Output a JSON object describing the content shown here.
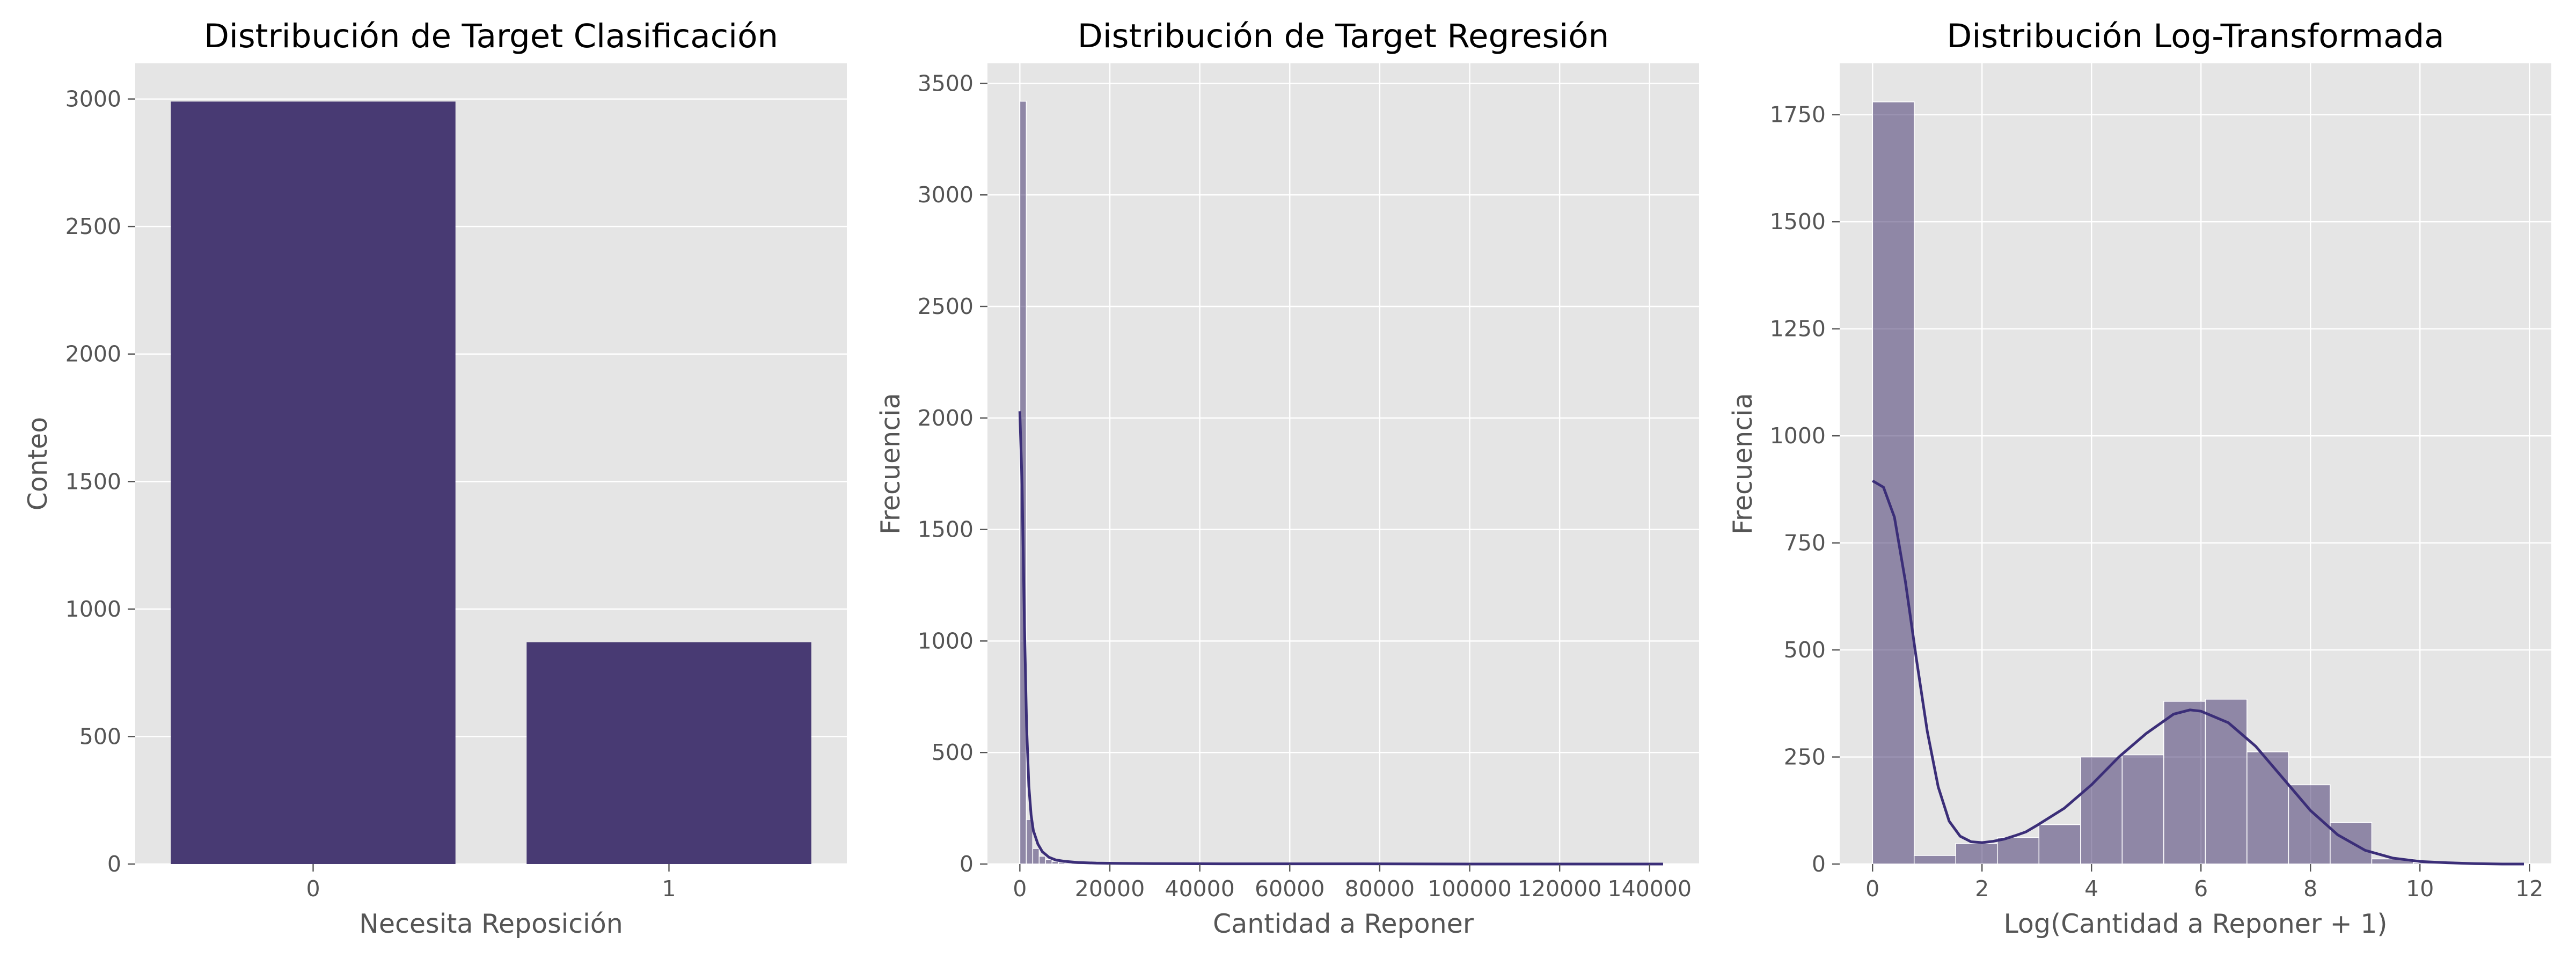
{
  "colors": {
    "bar": "#483a73",
    "hist_fill": "#483a73",
    "hist_opacity": 0.55,
    "kde_line": "#3b2e78",
    "plot_bg": "#e5e5e5",
    "grid": "#ffffff",
    "tick_text": "#555555",
    "title_text": "#000000"
  },
  "style": "ggplot",
  "chart_data": [
    {
      "type": "bar",
      "title": "Distribución de Target Clasificación",
      "xlabel": "Necesita Reposición",
      "ylabel": "Conteo",
      "categories": [
        "0",
        "1"
      ],
      "values": [
        2990,
        870
      ],
      "ylim": [
        0,
        3140
      ],
      "yticks": [
        0,
        500,
        1000,
        1500,
        2000,
        2500,
        3000
      ],
      "ytick_labels": [
        "0",
        "500",
        "1000",
        "1500",
        "2000",
        "2500",
        "3000"
      ],
      "grid": true
    },
    {
      "type": "histogram",
      "title": "Distribución de Target Regresión",
      "xlabel": "Cantidad a Reponer",
      "ylabel": "Frecuencia",
      "xlim": [
        -7200,
        151000
      ],
      "ylim": [
        0,
        3590
      ],
      "xticks": [
        0,
        20000,
        40000,
        60000,
        80000,
        100000,
        120000,
        140000
      ],
      "xtick_labels": [
        "0",
        "20000",
        "40000",
        "60000",
        "80000",
        "100000",
        "120000",
        "140000"
      ],
      "yticks": [
        0,
        500,
        1000,
        1500,
        2000,
        2500,
        3000,
        3500
      ],
      "ytick_labels": [
        "0",
        "500",
        "1000",
        "1500",
        "2000",
        "2500",
        "3000",
        "3500"
      ],
      "bin_edges": [
        0,
        1430,
        2860,
        4290,
        5720,
        7150,
        8580,
        10010,
        11440
      ],
      "counts": [
        3420,
        200,
        70,
        35,
        20,
        12,
        8,
        5
      ],
      "tail_end": 143000,
      "tail_count": 2,
      "kde": {
        "x": [
          0,
          500,
          1000,
          1500,
          2000,
          2500,
          3000,
          4000,
          5000,
          6500,
          8000,
          10000,
          13000,
          17000,
          22000,
          30000,
          45000,
          70000,
          100000,
          143000
        ],
        "y": [
          2030,
          1700,
          1100,
          620,
          350,
          220,
          150,
          90,
          55,
          30,
          18,
          12,
          7,
          4,
          3,
          2,
          1,
          1,
          0,
          0
        ]
      },
      "grid": true
    },
    {
      "type": "histogram",
      "title": "Distribución Log-Transformada",
      "xlabel": "Log(Cantidad a Reponer + 1)",
      "ylabel": "Frecuencia",
      "xlim": [
        -0.6,
        12.4
      ],
      "ylim": [
        0,
        1870
      ],
      "xticks": [
        0,
        2,
        4,
        6,
        8,
        10,
        12
      ],
      "xtick_labels": [
        "0",
        "2",
        "4",
        "6",
        "8",
        "10",
        "12"
      ],
      "yticks": [
        0,
        250,
        500,
        750,
        1000,
        1250,
        1500,
        1750
      ],
      "ytick_labels": [
        "0",
        "250",
        "500",
        "750",
        "1000",
        "1250",
        "1500",
        "1750"
      ],
      "bin_edges": [
        0,
        0.76,
        1.52,
        2.28,
        3.04,
        3.8,
        4.56,
        5.32,
        6.08,
        6.84,
        7.6,
        8.36,
        9.12,
        9.88,
        10.64,
        11.4,
        11.9
      ],
      "counts": [
        1780,
        20,
        48,
        62,
        92,
        250,
        255,
        380,
        385,
        262,
        185,
        97,
        12,
        3,
        1,
        1
      ],
      "kde": {
        "x": [
          0,
          0.2,
          0.4,
          0.6,
          0.8,
          1.0,
          1.2,
          1.4,
          1.6,
          1.8,
          2.0,
          2.2,
          2.4,
          2.6,
          2.8,
          3.0,
          3.5,
          4.0,
          4.5,
          5.0,
          5.5,
          5.8,
          6.0,
          6.5,
          7.0,
          7.5,
          8.0,
          8.5,
          9.0,
          9.5,
          10.0,
          10.5,
          11.0,
          11.5,
          11.9
        ],
        "y": [
          895,
          880,
          810,
          660,
          480,
          310,
          180,
          100,
          65,
          52,
          50,
          53,
          58,
          66,
          75,
          90,
          130,
          185,
          250,
          305,
          350,
          360,
          357,
          330,
          275,
          200,
          125,
          68,
          32,
          14,
          6,
          3,
          1,
          0,
          0
        ]
      },
      "grid": true
    }
  ]
}
